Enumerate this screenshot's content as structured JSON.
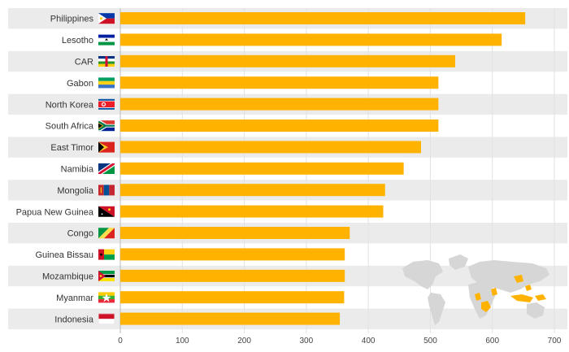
{
  "chart_data": {
    "type": "bar",
    "orientation": "horizontal",
    "categories": [
      "Philippines",
      "Lesotho",
      "CAR",
      "Gabon",
      "North Korea",
      "South Africa",
      "East Timor",
      "Namibia",
      "Mongolia",
      "Papua New Guinea",
      "Congo",
      "Guinea Bissau",
      "Mozambique",
      "Myanmar",
      "Indonesia"
    ],
    "values": [
      653,
      615,
      540,
      513,
      513,
      513,
      485,
      457,
      427,
      424,
      370,
      362,
      362,
      361,
      354
    ],
    "xlim": [
      0,
      700
    ],
    "xticks": [
      0,
      100,
      200,
      300,
      400,
      500,
      600,
      700
    ],
    "title": "",
    "xlabel": "",
    "ylabel": "",
    "grid": true,
    "legend": "none",
    "flags": [
      "philippines-flag",
      "lesotho-flag",
      "car-flag",
      "gabon-flag",
      "north-korea-flag",
      "south-africa-flag",
      "east-timor-flag",
      "namibia-flag",
      "mongolia-flag",
      "papua-new-guinea-flag",
      "congo-flag",
      "guinea-bissau-flag",
      "mozambique-flag",
      "myanmar-flag",
      "indonesia-flag"
    ],
    "colors": {
      "bar": "#FFB300",
      "row_stripe": "#EBEBEB",
      "map_land": "#D6D6D6",
      "map_highlight": "#FFB300"
    }
  }
}
